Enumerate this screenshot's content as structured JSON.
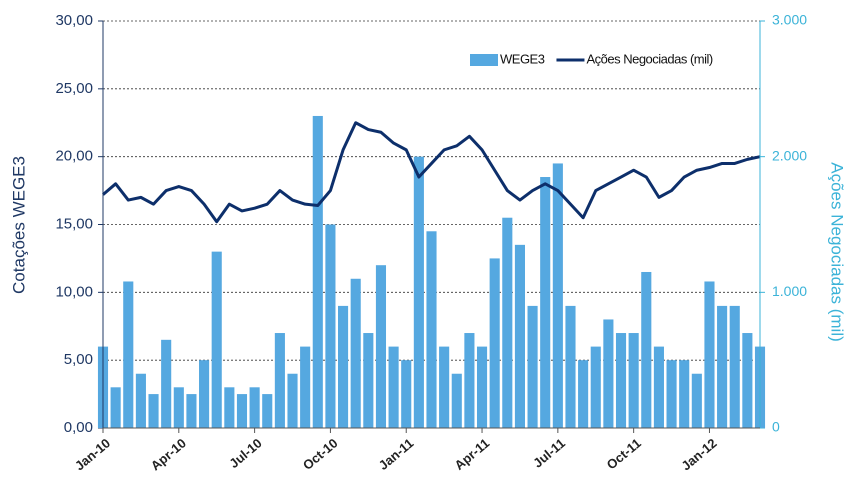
{
  "chart_data": {
    "type": "bar_line",
    "y_label": "Cotações WEGE3",
    "y2_label": "Ações Negociadas (mil)",
    "categories": [
      "Jan-10",
      null,
      null,
      null,
      null,
      null,
      "Apr-10",
      null,
      null,
      null,
      null,
      null,
      "Jul-10",
      null,
      null,
      null,
      null,
      null,
      "Oct-10",
      null,
      null,
      null,
      null,
      null,
      "Jan-11",
      null,
      null,
      null,
      null,
      null,
      "Apr-11",
      null,
      null,
      null,
      null,
      null,
      "Jul-11",
      null,
      null,
      null,
      null,
      null,
      "Oct-11",
      null,
      null,
      null,
      null,
      null,
      "Jan-12",
      null,
      null,
      null,
      null
    ],
    "series": [
      {
        "name": "WEGE3",
        "type": "bar",
        "axis": "y2",
        "color": "#55a8e0",
        "values": [
          600,
          300,
          1080,
          400,
          250,
          650,
          300,
          250,
          500,
          1300,
          300,
          250,
          300,
          250,
          700,
          400,
          600,
          2300,
          1500,
          900,
          1100,
          700,
          1200,
          600,
          500,
          2000,
          1450,
          600,
          400,
          700,
          600,
          1250,
          1550,
          1350,
          900,
          1850,
          1950,
          900,
          500,
          600,
          800,
          700,
          700,
          1150,
          600,
          500,
          500,
          400,
          1080,
          900,
          900,
          700,
          600
        ]
      },
      {
        "name": "Ações Negociadas (mil)",
        "type": "line",
        "axis": "y",
        "color": "#0d2f6b",
        "values": [
          17.2,
          18,
          16.8,
          17,
          16.5,
          17.5,
          17.8,
          17.5,
          16.5,
          15.2,
          16.5,
          16,
          16.2,
          16.5,
          17.5,
          16.8,
          16.5,
          16.4,
          17.5,
          20.5,
          22.5,
          22,
          21.8,
          21,
          20.5,
          18.5,
          19.5,
          20.5,
          20.8,
          21.5,
          20.5,
          19,
          17.5,
          16.8,
          17.5,
          18,
          17.5,
          16.5,
          15.5,
          17.5,
          18,
          18.5,
          19,
          18.5,
          17,
          17.5,
          18.5,
          19,
          19.2,
          19.5,
          19.5,
          19.8,
          20
        ]
      }
    ],
    "ylim": [
      0,
      30
    ],
    "yticks": [
      {
        "value": 0,
        "label": "0,00"
      },
      {
        "value": 5,
        "label": "5,00"
      },
      {
        "value": 10,
        "label": "10,00"
      },
      {
        "value": 15,
        "label": "15,00"
      },
      {
        "value": 20,
        "label": "20,00"
      },
      {
        "value": 25,
        "label": "25,00"
      },
      {
        "value": 30,
        "label": "30,00"
      }
    ],
    "y2lim": [
      0,
      3000
    ],
    "y2ticks": [
      0,
      {
        "value": 1000,
        "label": "1.000"
      },
      {
        "value": 2000,
        "label": "2.000"
      },
      {
        "value": 3000,
        "label": "3.000"
      }
    ],
    "grid": true,
    "legend": "top"
  }
}
